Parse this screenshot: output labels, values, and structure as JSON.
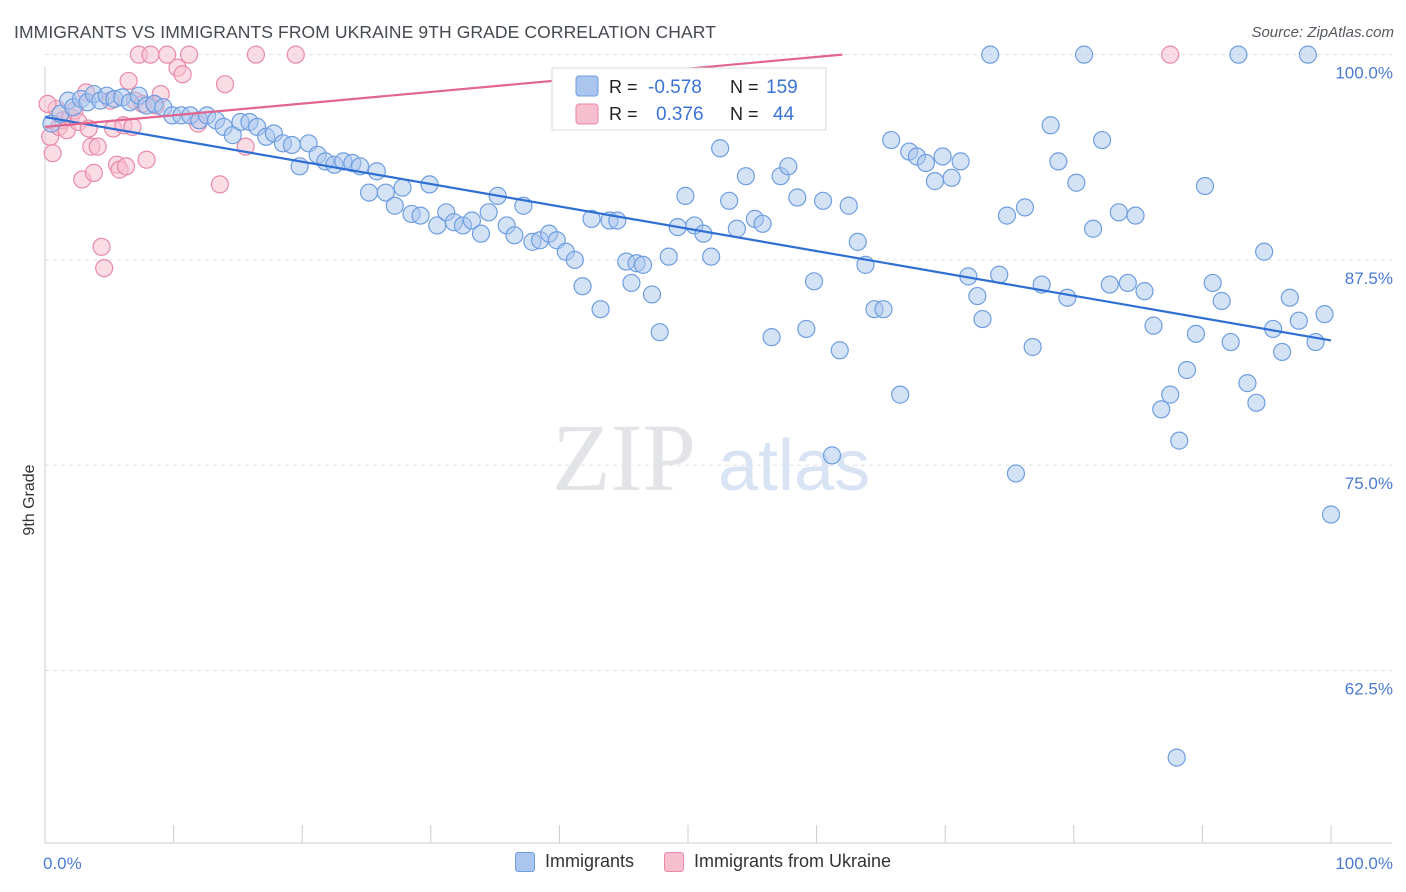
{
  "title": "IMMIGRANTS VS IMMIGRANTS FROM UKRAINE 9TH GRADE CORRELATION CHART",
  "source": "Source: ZipAtlas.com",
  "watermark": {
    "zip": "ZIP",
    "atlas": "atlas"
  },
  "colors": {
    "blue_fill": "#aac6ee",
    "blue_stroke": "#6f9ee0",
    "blue_line": "#2f6fd3",
    "pink_fill": "#f6bfd0",
    "pink_stroke": "#e88aa8",
    "pink_line": "#e06590",
    "tick_text": "#4a7bd0",
    "grid": "#dde1e6"
  },
  "stats": [
    {
      "r_label": "R =",
      "r_value": "-0.578",
      "n_label": "N =",
      "n_value": "159"
    },
    {
      "r_label": "R =",
      "r_value": "0.376",
      "n_label": "N =",
      "n_value": "44"
    }
  ],
  "legend": [
    {
      "name": "Immigrants"
    },
    {
      "name": "Immigrants from Ukraine"
    }
  ],
  "chart_data": {
    "type": "scatter",
    "xlabel": "",
    "ylabel": "9th Grade",
    "xlim": [
      0,
      100
    ],
    "ylim": [
      52,
      101.5
    ],
    "x_tick_labels": [
      "0.0%",
      "100.0%"
    ],
    "y_ticks": [
      100.0,
      87.5,
      75.0,
      62.5
    ],
    "y_tick_labels": [
      "100.0%",
      "87.5%",
      "75.0%",
      "62.5%"
    ],
    "grid": true,
    "series": [
      {
        "name": "Immigrants",
        "trend": {
          "x": [
            0,
            100
          ],
          "y": [
            96.2,
            82.6
          ]
        },
        "points": [
          [
            0.5,
            95.8
          ],
          [
            1.2,
            96.4
          ],
          [
            1.8,
            97.2
          ],
          [
            2.2,
            96.8
          ],
          [
            2.8,
            97.3
          ],
          [
            3.3,
            97.1
          ],
          [
            3.8,
            97.6
          ],
          [
            4.3,
            97.2
          ],
          [
            4.8,
            97.5
          ],
          [
            5.4,
            97.3
          ],
          [
            6.0,
            97.4
          ],
          [
            6.6,
            97.1
          ],
          [
            7.3,
            97.5
          ],
          [
            7.9,
            96.9
          ],
          [
            8.5,
            97.0
          ],
          [
            9.2,
            96.8
          ],
          [
            9.9,
            96.3
          ],
          [
            10.6,
            96.3
          ],
          [
            11.3,
            96.3
          ],
          [
            12.0,
            96.0
          ],
          [
            12.6,
            96.3
          ],
          [
            13.3,
            96.0
          ],
          [
            13.9,
            95.6
          ],
          [
            14.6,
            95.1
          ],
          [
            15.2,
            95.9
          ],
          [
            15.9,
            95.9
          ],
          [
            16.5,
            95.6
          ],
          [
            17.2,
            95.0
          ],
          [
            17.8,
            95.2
          ],
          [
            18.5,
            94.6
          ],
          [
            19.2,
            94.5
          ],
          [
            19.8,
            93.2
          ],
          [
            20.5,
            94.6
          ],
          [
            21.2,
            93.9
          ],
          [
            21.8,
            93.5
          ],
          [
            22.5,
            93.3
          ],
          [
            23.2,
            93.5
          ],
          [
            23.9,
            93.4
          ],
          [
            24.5,
            93.2
          ],
          [
            25.2,
            91.6
          ],
          [
            25.8,
            92.9
          ],
          [
            26.5,
            91.6
          ],
          [
            27.2,
            90.8
          ],
          [
            27.8,
            91.9
          ],
          [
            28.5,
            90.3
          ],
          [
            29.2,
            90.2
          ],
          [
            29.9,
            92.1
          ],
          [
            30.5,
            89.6
          ],
          [
            31.2,
            90.4
          ],
          [
            31.8,
            89.8
          ],
          [
            32.5,
            89.6
          ],
          [
            33.2,
            89.9
          ],
          [
            33.9,
            89.1
          ],
          [
            34.5,
            90.4
          ],
          [
            35.2,
            91.4
          ],
          [
            35.9,
            89.6
          ],
          [
            36.5,
            89.0
          ],
          [
            37.2,
            90.8
          ],
          [
            37.9,
            88.6
          ],
          [
            38.5,
            88.7
          ],
          [
            39.2,
            89.1
          ],
          [
            39.8,
            88.7
          ],
          [
            40.5,
            88.0
          ],
          [
            41.2,
            87.5
          ],
          [
            41.8,
            85.9
          ],
          [
            42.5,
            90.0
          ],
          [
            43.2,
            84.5
          ],
          [
            43.9,
            89.9
          ],
          [
            44.5,
            89.9
          ],
          [
            45.2,
            87.4
          ],
          [
            45.6,
            86.1
          ],
          [
            46.0,
            87.3
          ],
          [
            46.5,
            87.2
          ],
          [
            47.2,
            85.4
          ],
          [
            47.8,
            83.1
          ],
          [
            48.5,
            87.7
          ],
          [
            49.2,
            89.5
          ],
          [
            49.8,
            91.4
          ],
          [
            50.5,
            89.6
          ],
          [
            51.2,
            89.1
          ],
          [
            51.8,
            87.7
          ],
          [
            52.5,
            94.3
          ],
          [
            53.2,
            91.1
          ],
          [
            53.8,
            89.4
          ],
          [
            54.5,
            92.6
          ],
          [
            55.2,
            90.0
          ],
          [
            55.8,
            89.7
          ],
          [
            56.5,
            82.8
          ],
          [
            57.2,
            92.6
          ],
          [
            57.8,
            93.2
          ],
          [
            58.5,
            91.3
          ],
          [
            59.2,
            83.3
          ],
          [
            59.8,
            86.2
          ],
          [
            60.5,
            91.1
          ],
          [
            61.2,
            75.6
          ],
          [
            61.8,
            82.0
          ],
          [
            62.5,
            90.8
          ],
          [
            63.2,
            88.6
          ],
          [
            63.8,
            87.2
          ],
          [
            64.5,
            84.5
          ],
          [
            65.2,
            84.5
          ],
          [
            65.8,
            94.8
          ],
          [
            66.5,
            79.3
          ],
          [
            67.2,
            94.1
          ],
          [
            67.8,
            93.8
          ],
          [
            68.5,
            93.4
          ],
          [
            69.2,
            92.3
          ],
          [
            69.8,
            93.8
          ],
          [
            70.5,
            92.5
          ],
          [
            71.2,
            93.5
          ],
          [
            71.8,
            86.5
          ],
          [
            72.5,
            85.3
          ],
          [
            72.9,
            83.9
          ],
          [
            73.5,
            100.0
          ],
          [
            74.2,
            86.6
          ],
          [
            74.8,
            90.2
          ],
          [
            75.5,
            74.5
          ],
          [
            76.2,
            90.7
          ],
          [
            76.8,
            82.2
          ],
          [
            77.5,
            86.0
          ],
          [
            78.2,
            95.7
          ],
          [
            78.8,
            93.5
          ],
          [
            79.5,
            85.2
          ],
          [
            80.2,
            92.2
          ],
          [
            80.8,
            100.0
          ],
          [
            81.5,
            89.4
          ],
          [
            82.2,
            94.8
          ],
          [
            82.8,
            86.0
          ],
          [
            83.5,
            90.4
          ],
          [
            84.2,
            86.1
          ],
          [
            84.8,
            90.2
          ],
          [
            85.5,
            85.6
          ],
          [
            86.2,
            83.5
          ],
          [
            86.8,
            78.4
          ],
          [
            87.5,
            79.3
          ],
          [
            88.2,
            76.5
          ],
          [
            88.8,
            80.8
          ],
          [
            89.5,
            83.0
          ],
          [
            90.2,
            92.0
          ],
          [
            90.8,
            86.1
          ],
          [
            91.5,
            85.0
          ],
          [
            92.2,
            82.5
          ],
          [
            92.8,
            100.0
          ],
          [
            93.5,
            80.0
          ],
          [
            94.2,
            78.8
          ],
          [
            94.8,
            88.0
          ],
          [
            95.5,
            83.3
          ],
          [
            96.2,
            81.9
          ],
          [
            96.8,
            85.2
          ],
          [
            97.5,
            83.8
          ],
          [
            98.2,
            100.0
          ],
          [
            98.8,
            82.5
          ],
          [
            99.5,
            84.2
          ],
          [
            100.0,
            72.0
          ],
          [
            88.0,
            57.2
          ]
        ]
      },
      {
        "name": "Immigrants from Ukraine",
        "trend": {
          "x": [
            0,
            62
          ],
          "y": [
            95.6,
            100.0
          ]
        },
        "points": [
          [
            0.4,
            95.0
          ],
          [
            0.6,
            94.0
          ],
          [
            0.9,
            96.7
          ],
          [
            1.1,
            95.6
          ],
          [
            1.4,
            96.0
          ],
          [
            1.7,
            95.4
          ],
          [
            2.0,
            96.2
          ],
          [
            2.3,
            96.6
          ],
          [
            2.6,
            95.9
          ],
          [
            2.9,
            92.4
          ],
          [
            3.2,
            97.7
          ],
          [
            3.4,
            95.5
          ],
          [
            3.6,
            94.4
          ],
          [
            3.8,
            92.8
          ],
          [
            4.1,
            94.4
          ],
          [
            4.4,
            88.3
          ],
          [
            4.6,
            87.0
          ],
          [
            5.1,
            97.2
          ],
          [
            5.3,
            95.5
          ],
          [
            5.6,
            93.3
          ],
          [
            5.8,
            93.0
          ],
          [
            6.1,
            95.7
          ],
          [
            6.3,
            93.2
          ],
          [
            6.5,
            98.4
          ],
          [
            6.8,
            95.6
          ],
          [
            7.0,
            97.2
          ],
          [
            7.3,
            100.0
          ],
          [
            7.6,
            97.0
          ],
          [
            7.9,
            93.6
          ],
          [
            8.2,
            100.0
          ],
          [
            8.6,
            96.9
          ],
          [
            9.0,
            97.6
          ],
          [
            9.5,
            100.0
          ],
          [
            10.3,
            99.2
          ],
          [
            10.7,
            98.8
          ],
          [
            11.2,
            100.0
          ],
          [
            11.9,
            95.8
          ],
          [
            13.6,
            92.1
          ],
          [
            14.0,
            98.2
          ],
          [
            15.6,
            94.4
          ],
          [
            16.4,
            100.0
          ],
          [
            19.5,
            100.0
          ],
          [
            87.5,
            100.0
          ],
          [
            0.2,
            97.0
          ]
        ]
      }
    ]
  }
}
